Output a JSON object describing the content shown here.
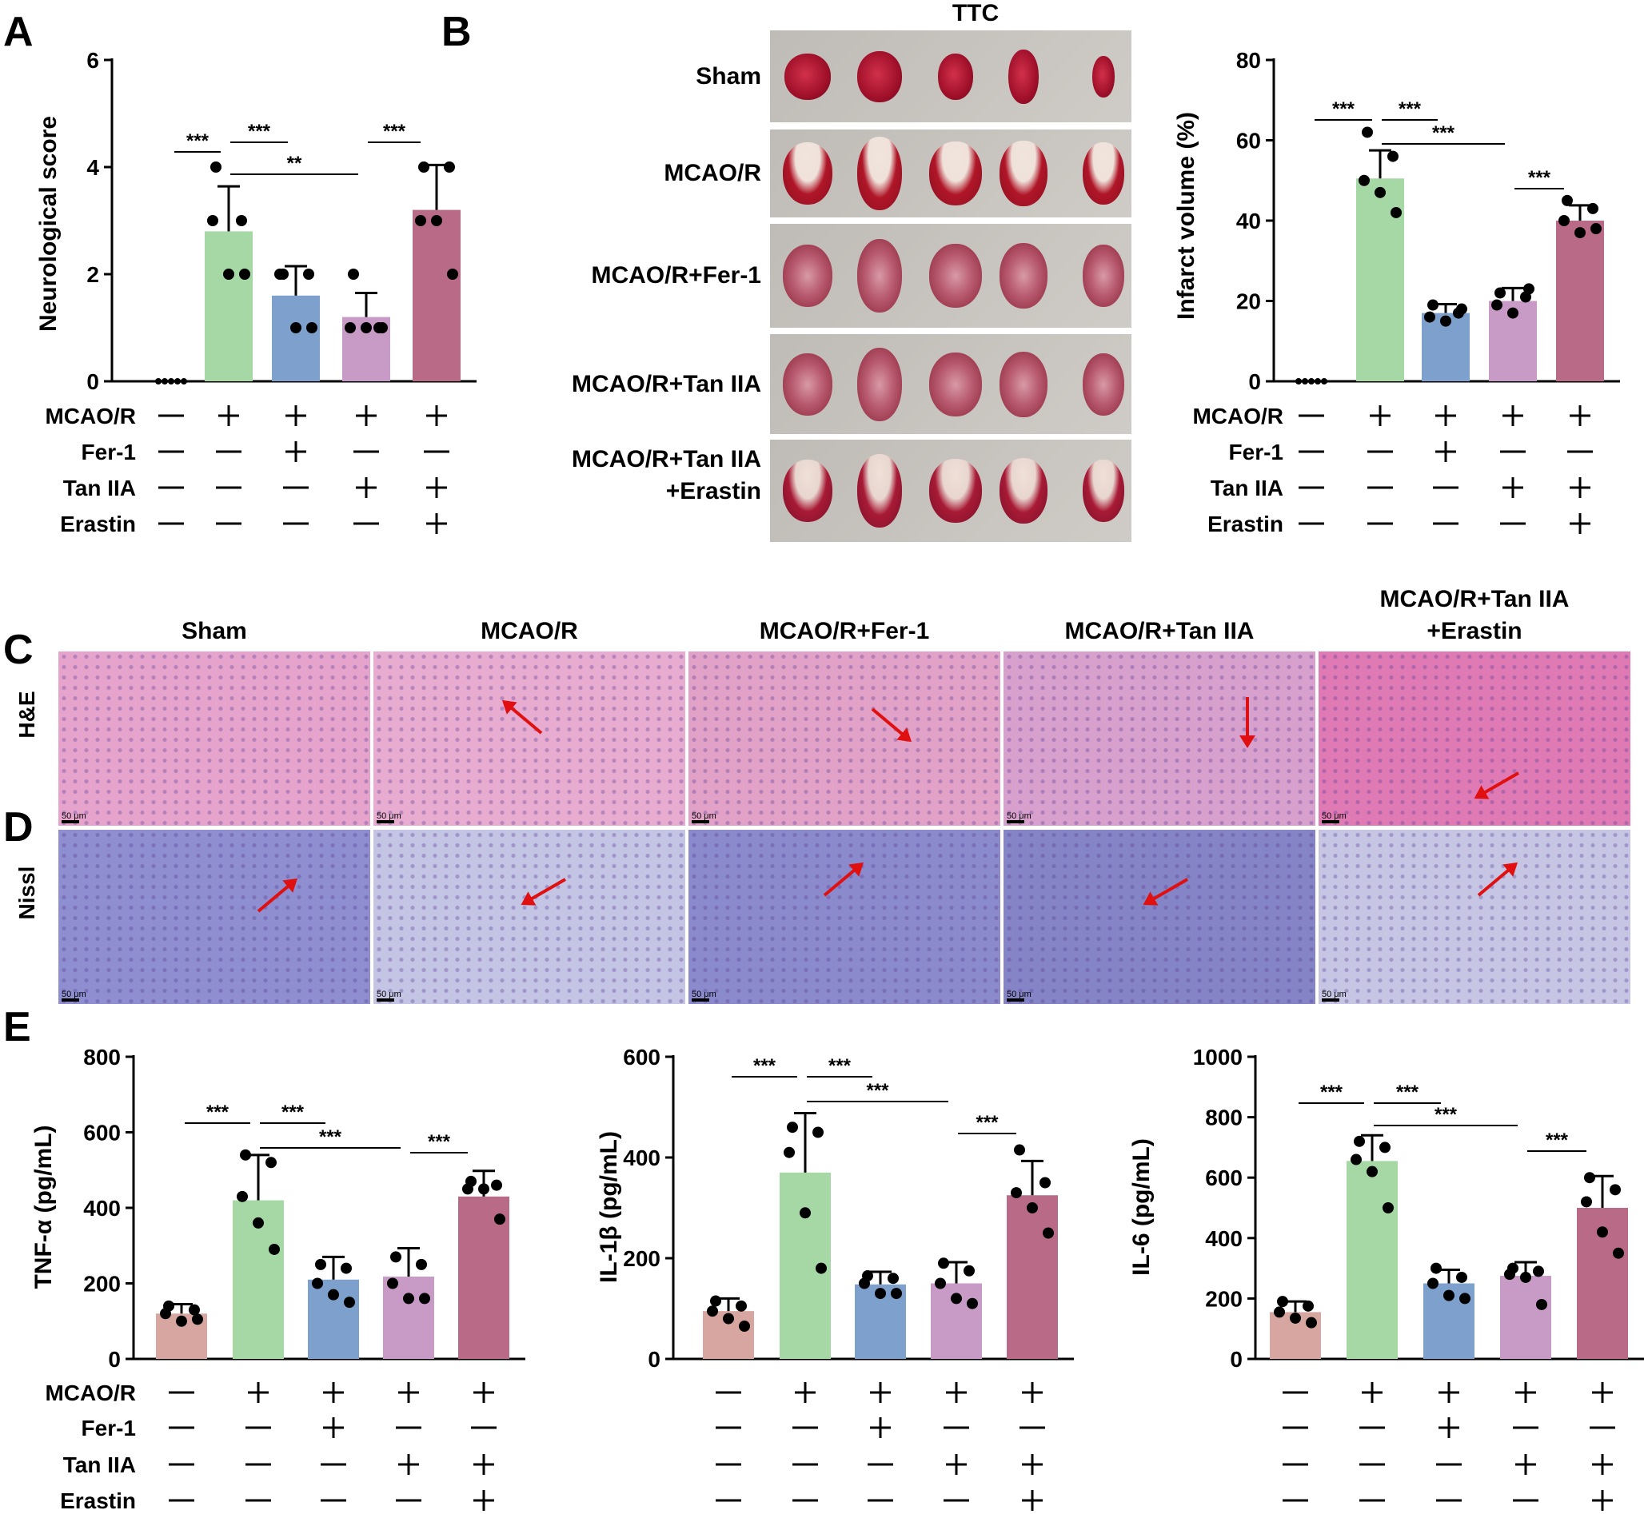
{
  "panels": {
    "A": "A",
    "B": "B",
    "C": "C",
    "D": "D",
    "E": "E"
  },
  "treatment_labels": [
    "MCAO/R",
    "Fer-1",
    "Tan IIA",
    "Erastin"
  ],
  "treatment_signs": [
    [
      "—",
      "+",
      "+",
      "+",
      "+"
    ],
    [
      "—",
      "—",
      "+",
      "—",
      "—"
    ],
    [
      "—",
      "—",
      "—",
      "+",
      "+"
    ],
    [
      "—",
      "—",
      "—",
      "—",
      "+"
    ]
  ],
  "group_colors": [
    "#d8a6a0",
    "#a6d8a6",
    "#7ea0cc",
    "#c89ac6",
    "#b86a86"
  ],
  "ttc": {
    "title": "TTC",
    "rows": [
      "Sham",
      "MCAO/R",
      "MCAO/R+Fer-1",
      "MCAO/R+Tan IIA"
    ],
    "last_row": [
      "MCAO/R+Tan IIA",
      "+Erastin"
    ]
  },
  "histology": {
    "columns": [
      "Sham",
      "MCAO/R",
      "MCAO/R+Fer-1",
      "MCAO/R+Tan IIA"
    ],
    "last_column": [
      "MCAO/R+Tan IIA",
      "+Erastin"
    ],
    "rows": [
      "H&E",
      "Nissl"
    ],
    "scale_bar": "50 μm"
  },
  "chart_data": [
    {
      "id": "A",
      "type": "bar",
      "ylabel": "Neurological score",
      "ylim": [
        0,
        6
      ],
      "yticks": [
        0,
        2,
        4,
        6
      ],
      "values": [
        0.0,
        2.8,
        1.6,
        1.2,
        3.2
      ],
      "errors": [
        0.0,
        0.84,
        0.55,
        0.45,
        0.84
      ],
      "points": [
        [
          0,
          0,
          0,
          0,
          0
        ],
        [
          4,
          3,
          3,
          2,
          2
        ],
        [
          2,
          2,
          2,
          1,
          1
        ],
        [
          2,
          1,
          1,
          1,
          1
        ],
        [
          4,
          4,
          3,
          3,
          2
        ]
      ],
      "significance": [
        {
          "from": 0,
          "to": 1,
          "label": "***"
        },
        {
          "from": 1,
          "to": 2,
          "label": "***"
        },
        {
          "from": 1,
          "to": 3,
          "label": "**"
        },
        {
          "from": 3,
          "to": 4,
          "label": "***"
        }
      ]
    },
    {
      "id": "B",
      "type": "bar",
      "ylabel": "Infarct volume (%)",
      "ylim": [
        0,
        80
      ],
      "yticks": [
        0,
        20,
        40,
        60,
        80
      ],
      "values": [
        0.0,
        50.5,
        17.0,
        20.0,
        40.0
      ],
      "errors": [
        0.0,
        7.0,
        2.2,
        3.2,
        3.8
      ],
      "points": [
        [
          0,
          0,
          0,
          0,
          0
        ],
        [
          62,
          56,
          50,
          47,
          42
        ],
        [
          19,
          17,
          16,
          15,
          18
        ],
        [
          22,
          21,
          19,
          17,
          23
        ],
        [
          45,
          43,
          40,
          37,
          38
        ]
      ],
      "significance": [
        {
          "from": 0,
          "to": 1,
          "label": "***"
        },
        {
          "from": 1,
          "to": 2,
          "label": "***"
        },
        {
          "from": 1,
          "to": 3,
          "label": "***"
        },
        {
          "from": 3,
          "to": 4,
          "label": "***"
        }
      ]
    },
    {
      "id": "E1",
      "type": "bar",
      "ylabel": "TNF-α (pg/mL)",
      "ylim": [
        0,
        800
      ],
      "yticks": [
        0,
        200,
        400,
        600,
        800
      ],
      "values": [
        120,
        420,
        210,
        218,
        430
      ],
      "errors": [
        25,
        120,
        60,
        75,
        68
      ],
      "points": [
        [
          140,
          130,
          120,
          100,
          105
        ],
        [
          540,
          520,
          430,
          360,
          290
        ],
        [
          250,
          240,
          200,
          170,
          150
        ],
        [
          270,
          250,
          200,
          160,
          160
        ],
        [
          470,
          460,
          450,
          450,
          370
        ]
      ],
      "significance": [
        {
          "from": 0,
          "to": 1,
          "label": "***"
        },
        {
          "from": 1,
          "to": 2,
          "label": "***"
        },
        {
          "from": 1,
          "to": 3,
          "label": "***"
        },
        {
          "from": 3,
          "to": 4,
          "label": "***"
        }
      ]
    },
    {
      "id": "E2",
      "type": "bar",
      "ylabel": "IL-1β (pg/mL)",
      "ylim": [
        0,
        600
      ],
      "yticks": [
        0,
        200,
        400,
        600
      ],
      "values": [
        95,
        370,
        148,
        150,
        325
      ],
      "errors": [
        25,
        118,
        25,
        42,
        68
      ],
      "points": [
        [
          115,
          105,
          95,
          80,
          65
        ],
        [
          460,
          450,
          410,
          290,
          180
        ],
        [
          165,
          160,
          150,
          130,
          130
        ],
        [
          190,
          175,
          150,
          120,
          110
        ],
        [
          415,
          350,
          330,
          300,
          250
        ]
      ],
      "significance": [
        {
          "from": 0,
          "to": 1,
          "label": "***"
        },
        {
          "from": 1,
          "to": 2,
          "label": "***"
        },
        {
          "from": 1,
          "to": 3,
          "label": "***"
        },
        {
          "from": 3,
          "to": 4,
          "label": "***"
        }
      ]
    },
    {
      "id": "E3",
      "type": "bar",
      "ylabel": "IL-6 (pg/mL)",
      "ylim": [
        0,
        1000
      ],
      "yticks": [
        0,
        200,
        400,
        600,
        800,
        1000
      ],
      "values": [
        155,
        655,
        250,
        275,
        500
      ],
      "errors": [
        35,
        85,
        45,
        45,
        105
      ],
      "points": [
        [
          190,
          175,
          155,
          135,
          120
        ],
        [
          720,
          700,
          660,
          620,
          500
        ],
        [
          300,
          270,
          250,
          210,
          200
        ],
        [
          300,
          290,
          280,
          270,
          180
        ],
        [
          600,
          560,
          520,
          420,
          350
        ]
      ],
      "significance": [
        {
          "from": 0,
          "to": 1,
          "label": "***"
        },
        {
          "from": 1,
          "to": 2,
          "label": "***"
        },
        {
          "from": 1,
          "to": 3,
          "label": "***"
        },
        {
          "from": 3,
          "to": 4,
          "label": "***"
        }
      ]
    }
  ]
}
